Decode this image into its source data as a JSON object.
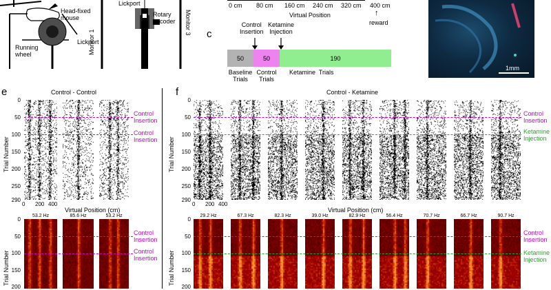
{
  "panels": {
    "c_letter": "c",
    "e_letter": "e",
    "f_letter": "f"
  },
  "rig": {
    "head_fixed_label": "Head-fixed\nmouse",
    "wheel_label": "Running\nwheel",
    "lickport_label": "Lickport",
    "lickport_top_label": "Lickport",
    "rotary_label": "Rotary\nencoder",
    "monitor1_label": "Monitor 1",
    "monitor3_label": "Monitor 3"
  },
  "track": {
    "ticks": [
      "0 cm",
      "80 cm",
      "160 cm",
      "240 cm",
      "320 cm",
      "400 cm"
    ],
    "axis_label": "Virtual Position",
    "reward_label": "reward"
  },
  "protocol": {
    "control_insertion_label": "Control\nInsertion",
    "ketamine_injection_label": "Ketamine\nInjection",
    "segments": [
      {
        "value": "50",
        "name": "Baseline\nTrials",
        "color": "#b3b3b3"
      },
      {
        "value": "50",
        "name": "Control\nTrials",
        "color": "#ee82ee"
      },
      {
        "value": "190",
        "name": "Ketamine  Trials",
        "color": "#90ee90"
      }
    ]
  },
  "histology": {
    "scale_label": "1mm"
  },
  "panel_e": {
    "title": "Control - Control",
    "ylabel": "Trial Number",
    "xlabel": "Virtual Position (cm)",
    "yticks_top": [
      "0",
      "50",
      "100",
      "150",
      "200",
      "250",
      "290"
    ],
    "xticks": [
      "0",
      "200",
      "400"
    ],
    "yticks_bottom": [
      "0",
      "50",
      "100",
      "150",
      "200"
    ],
    "annotations": [
      "Control\nInsertion",
      "Control\nInsertion"
    ],
    "freqs": [
      "53.2 Hz",
      "85.6 Hz",
      "53.2 Hz"
    ],
    "annotation_color": "#cc00cc"
  },
  "panel_f": {
    "title": "Control - Ketamine",
    "ylabel": "Trial Number",
    "xlabel": "Virtual Position (cm)",
    "yticks_top": [
      "0",
      "50",
      "100",
      "150",
      "200",
      "250",
      "290"
    ],
    "xticks": [
      "0",
      "200",
      "400"
    ],
    "yticks_bottom": [
      "0",
      "50",
      "100",
      "150",
      "200"
    ],
    "control_annotation": "Control\nInsertion",
    "ketamine_annotation": "Ketamine\nInjection",
    "freqs": [
      "29.2 Hz",
      "67.3 Hz",
      "82.3 Hz",
      "39.0 Hz",
      "82.9 Hz",
      "56.4 Hz",
      "70.7 Hz",
      "66.7 Hz",
      "90.7 Hz"
    ],
    "control_color": "#cc00cc",
    "ketamine_color": "#22aa22"
  }
}
